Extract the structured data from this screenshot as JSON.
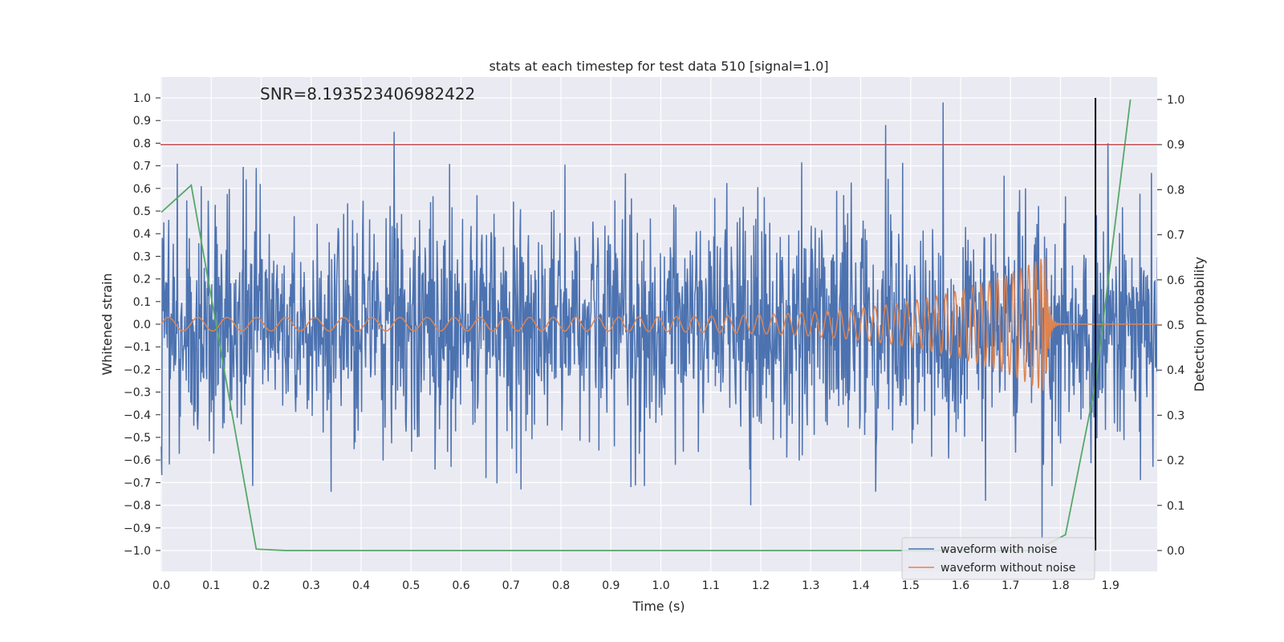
{
  "chart_data": {
    "type": "line",
    "title": "stats at each timestep for test data 510 [signal=1.0]",
    "xlabel": "Time (s)",
    "ylabel_left": "Whitened strain",
    "ylabel_right": "Detection probability",
    "xlim": [
      0.0,
      1.995
    ],
    "ylim_left": [
      -1.1,
      1.1
    ],
    "ylim_right": [
      -0.05,
      1.05
    ],
    "x_ticks": [
      "0.0",
      "0.1",
      "0.2",
      "0.3",
      "0.4",
      "0.5",
      "0.6",
      "0.7",
      "0.8",
      "0.9",
      "1.0",
      "1.1",
      "1.2",
      "1.3",
      "1.4",
      "1.5",
      "1.6",
      "1.7",
      "1.8",
      "1.9"
    ],
    "y_ticks_left": [
      "1.0",
      "0.9",
      "0.8",
      "0.7",
      "0.6",
      "0.5",
      "0.4",
      "0.3",
      "0.2",
      "0.1",
      "0.0",
      "−0.1",
      "−0.2",
      "−0.3",
      "−0.4",
      "−0.5",
      "−0.6",
      "−0.7",
      "−0.8",
      "−0.9",
      "−1.0"
    ],
    "y_ticks_right": [
      "1.0",
      "0.9",
      "0.8",
      "0.7",
      "0.6",
      "0.5",
      "0.4",
      "0.3",
      "0.2",
      "0.1",
      "0.0"
    ],
    "grid": true,
    "annotation": "SNR=8.193523406982422",
    "threshold": {
      "y_right": 0.9,
      "color": "#c44e52"
    },
    "event_marker": {
      "x": 1.87,
      "y_range": [
        -1.0,
        1.0
      ],
      "color": "#000000"
    },
    "legend_position": "lower-right",
    "series": [
      {
        "name": "waveform with noise",
        "axis": "left",
        "color": "#4c72b0",
        "kind": "noise",
        "amplitude_std": 0.25,
        "peaks": [
          [
            0.08,
            0.61
          ],
          [
            0.17,
            0.64
          ],
          [
            0.19,
            0.69
          ],
          [
            0.466,
            0.85
          ],
          [
            0.34,
            -0.74
          ],
          [
            0.65,
            -0.68
          ],
          [
            0.72,
            -0.73
          ],
          [
            1.18,
            -0.8
          ],
          [
            1.45,
            0.88
          ],
          [
            1.565,
            0.98
          ],
          [
            1.43,
            -0.74
          ],
          [
            1.65,
            -0.78
          ],
          [
            1.763,
            -0.95
          ],
          [
            1.895,
            0.8
          ],
          [
            0.0,
            -0.54
          ],
          [
            0.016,
            -0.62
          ],
          [
            0.94,
            -0.72
          ],
          [
            0.58,
            -0.63
          ],
          [
            1.73,
            0.6
          ]
        ]
      },
      {
        "name": "waveform without noise",
        "axis": "left",
        "color": "#dd8452",
        "kind": "chirp",
        "amplitude_start": 0.03,
        "amplitude_peak": 0.3,
        "merger_time": 1.77,
        "frequency_start": 17,
        "frequency_end": 70
      },
      {
        "name": "",
        "axis": "right",
        "color": "#55a868",
        "kind": "probability",
        "x": [
          0.0,
          0.06,
          0.19,
          0.25,
          1.75,
          1.81,
          1.87,
          1.94
        ],
        "y": [
          0.75,
          0.81,
          0.003,
          0.0,
          0.0,
          0.035,
          0.37,
          1.0
        ]
      }
    ]
  }
}
